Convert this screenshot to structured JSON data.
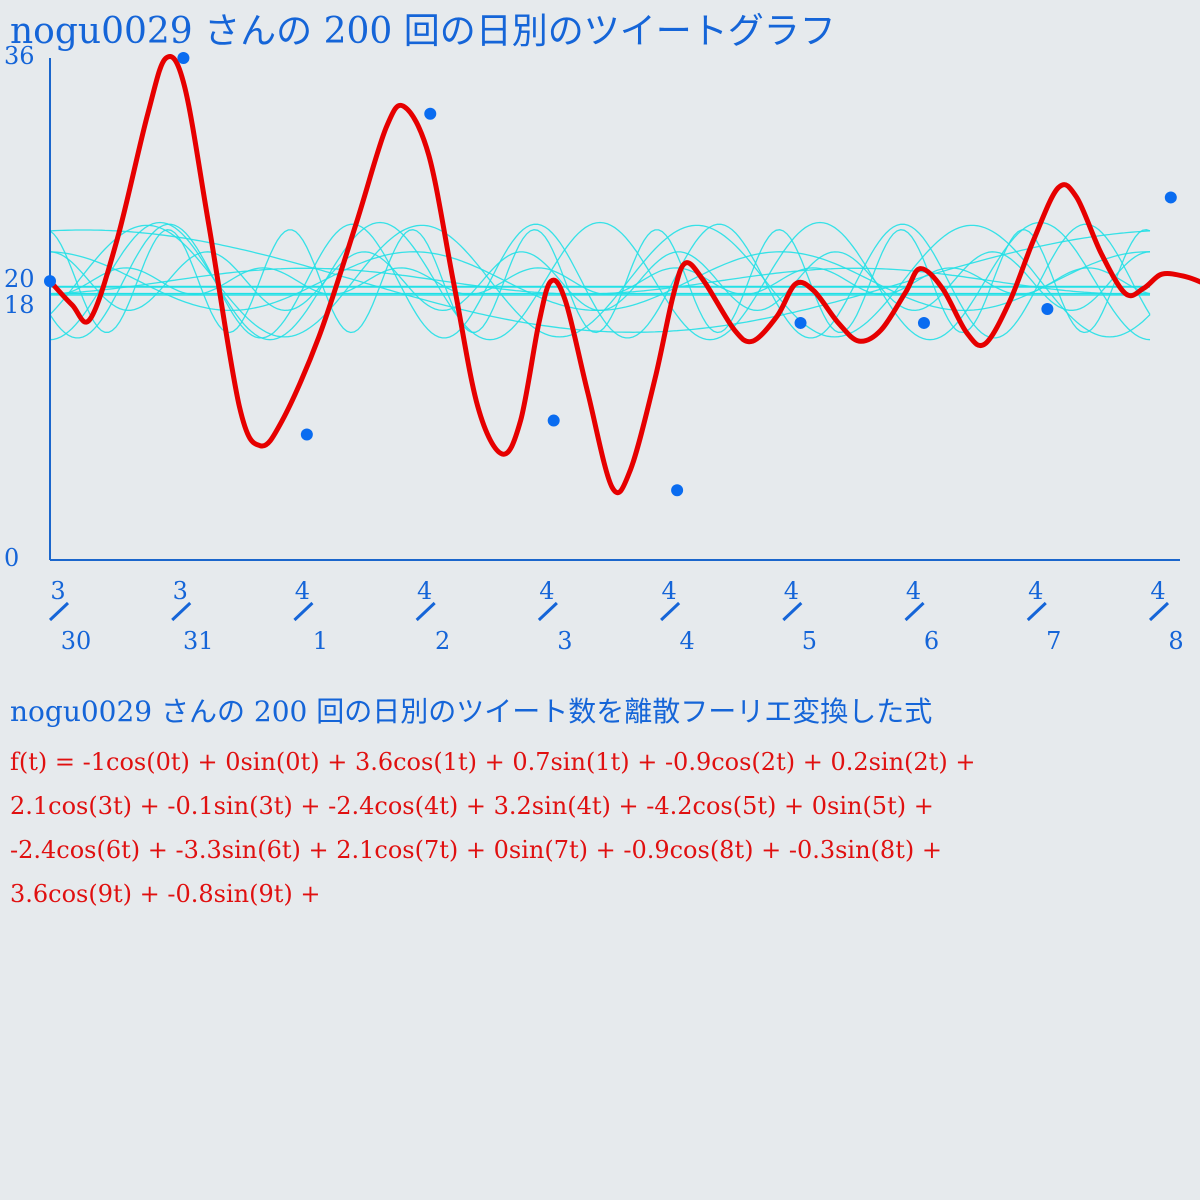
{
  "title": "nogu0029 さんの 200 回の日別のツイートグラフ",
  "formula_title": "nogu0029 さんの 200 回の日別のツイート数を離散フーリエ変換した式",
  "formula_lines": [
    "f(t) = -1cos(0t) + 0sin(0t) + 3.6cos(1t) + 0.7sin(1t) + -0.9cos(2t) + 0.2sin(2t) +",
    "2.1cos(3t) + -0.1sin(3t) + -2.4cos(4t) + 3.2sin(4t) + -4.2cos(5t) + 0sin(5t) +",
    "-2.4cos(6t) + -3.3sin(6t) + 2.1cos(7t) + 0sin(7t) + -0.9cos(8t) + -0.3sin(8t) +",
    "3.6cos(9t) + -0.8sin(9t) +"
  ],
  "colors": {
    "axis": "#1a66cc",
    "text": "#1565d8",
    "points": "#0a6cf0",
    "fourier_curve": "#e60000",
    "component_curves": "#22e0e6",
    "background": "#e6eaed"
  },
  "chart_data": {
    "type": "line",
    "title": "nogu0029 さんの 200 回の日別のツイートグラフ",
    "ylim": [
      0,
      36
    ],
    "y_ticks": [
      "0",
      "18",
      "20",
      "36"
    ],
    "categories": [
      {
        "month": "3",
        "day": "30"
      },
      {
        "month": "3",
        "day": "31"
      },
      {
        "month": "4",
        "day": "1"
      },
      {
        "month": "4",
        "day": "2"
      },
      {
        "month": "4",
        "day": "3"
      },
      {
        "month": "4",
        "day": "4"
      },
      {
        "month": "4",
        "day": "5"
      },
      {
        "month": "4",
        "day": "6"
      },
      {
        "month": "4",
        "day": "7"
      },
      {
        "month": "4",
        "day": "8"
      }
    ],
    "points": [
      20,
      36,
      9,
      32,
      10,
      5,
      17,
      17,
      18,
      26
    ],
    "fourier": {
      "cos": [
        -1,
        3.6,
        -0.9,
        2.1,
        -2.4,
        -4.2,
        -2.4,
        2.1,
        -0.9,
        3.6
      ],
      "sin": [
        0,
        0.7,
        0.2,
        -0.1,
        3.2,
        0,
        -3.3,
        0,
        -0.3,
        -0.8
      ]
    },
    "fourier_curve": [
      [
        0,
        20
      ],
      [
        0.18,
        18.3
      ],
      [
        0.33,
        17.3
      ],
      [
        0.55,
        23
      ],
      [
        0.8,
        32
      ],
      [
        0.95,
        36
      ],
      [
        1.1,
        34
      ],
      [
        1.3,
        24
      ],
      [
        1.55,
        11
      ],
      [
        1.72,
        8.2
      ],
      [
        1.9,
        10
      ],
      [
        2.2,
        16
      ],
      [
        2.5,
        24
      ],
      [
        2.75,
        31
      ],
      [
        2.9,
        32.5
      ],
      [
        3.1,
        29
      ],
      [
        3.3,
        20
      ],
      [
        3.5,
        11
      ],
      [
        3.7,
        7.6
      ],
      [
        3.85,
        10
      ],
      [
        4.0,
        17
      ],
      [
        4.1,
        20
      ],
      [
        4.22,
        18.5
      ],
      [
        4.4,
        12
      ],
      [
        4.6,
        5.2
      ],
      [
        4.75,
        6.5
      ],
      [
        4.95,
        13
      ],
      [
        5.1,
        19
      ],
      [
        5.2,
        21.3
      ],
      [
        5.35,
        20
      ],
      [
        5.6,
        16.5
      ],
      [
        5.75,
        15.7
      ],
      [
        5.95,
        17.5
      ],
      [
        6.1,
        19.8
      ],
      [
        6.25,
        19.3
      ],
      [
        6.45,
        17
      ],
      [
        6.62,
        15.7
      ],
      [
        6.8,
        16.5
      ],
      [
        7.0,
        19.2
      ],
      [
        7.12,
        20.9
      ],
      [
        7.3,
        19.5
      ],
      [
        7.5,
        16.3
      ],
      [
        7.65,
        15.5
      ],
      [
        7.85,
        18.5
      ],
      [
        8.05,
        23
      ],
      [
        8.25,
        26.7
      ],
      [
        8.4,
        26
      ],
      [
        8.6,
        22
      ],
      [
        8.8,
        19.1
      ],
      [
        8.95,
        19.5
      ],
      [
        9.1,
        20.5
      ],
      [
        9.3,
        20.3
      ],
      [
        9.45,
        19.8
      ]
    ]
  }
}
